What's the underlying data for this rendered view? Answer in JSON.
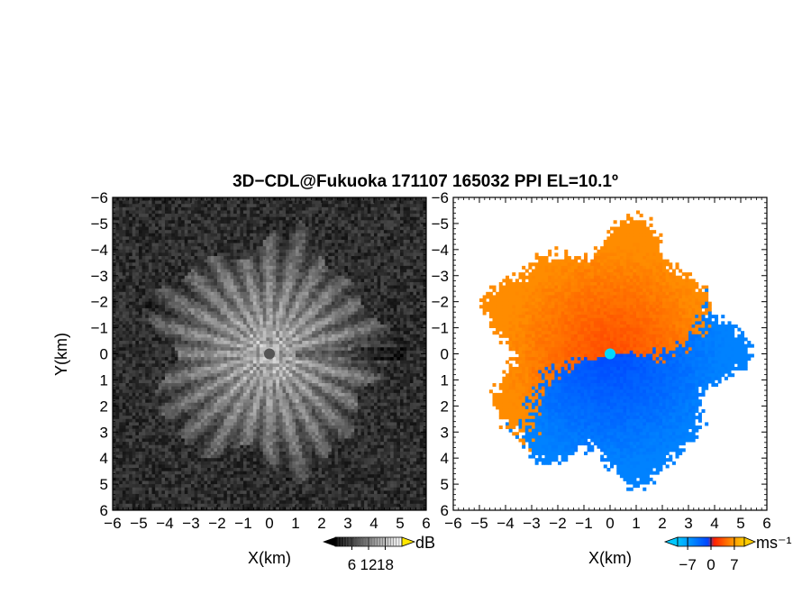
{
  "title": "3D−CDL@Fukuoka 171107 165032 PPI EL=10.1º",
  "chart_data": [
    {
      "type": "heatmap",
      "quantity": "reflectivity",
      "xlabel": "X(km)",
      "ylabel": "Y(km)",
      "xlim": [
        -6,
        6
      ],
      "ylim": [
        -6,
        6
      ],
      "xticks": [
        "−6",
        "−5",
        "−4",
        "−3",
        "−2",
        "−1",
        "0",
        "1",
        "2",
        "3",
        "4",
        "5",
        "6"
      ],
      "yticks": [
        "−6",
        "−5",
        "−4",
        "−3",
        "−2",
        "−1",
        "0",
        "1",
        "2",
        "3",
        "4",
        "5",
        "6"
      ],
      "echo_radius_km": 4.4,
      "colorbar": {
        "unit": "dB",
        "range": [
          0,
          24
        ],
        "ticks": [
          6,
          12,
          18
        ],
        "tick_labels": [
          "6",
          "12",
          "18"
        ],
        "colors": "grayscale"
      },
      "center_marker_color": "#555555"
    },
    {
      "type": "heatmap",
      "quantity": "doppler velocity",
      "xlabel": "X(km)",
      "ylabel": "",
      "xlim": [
        -6,
        6
      ],
      "ylim": [
        -6,
        6
      ],
      "xticks": [
        "−6",
        "−5",
        "−4",
        "−3",
        "−2",
        "−1",
        "0",
        "1",
        "2",
        "3",
        "4",
        "5",
        "6"
      ],
      "yticks": [
        "−6",
        "−5",
        "−4",
        "−3",
        "−2",
        "−1",
        "0",
        "1",
        "2",
        "3",
        "4",
        "5",
        "6"
      ],
      "echo_radius_km": 4.5,
      "colorbar": {
        "unit": "ms⁻¹",
        "range": [
          -10,
          10
        ],
        "ticks": [
          -7,
          0,
          7
        ],
        "tick_labels": [
          "−7",
          "0",
          "7"
        ],
        "colors": [
          "#00c8ff",
          "#0046ff",
          "#ff2000",
          "#ff8a00",
          "#ffcc00"
        ]
      },
      "center_marker_color": "#00d8ff"
    }
  ]
}
